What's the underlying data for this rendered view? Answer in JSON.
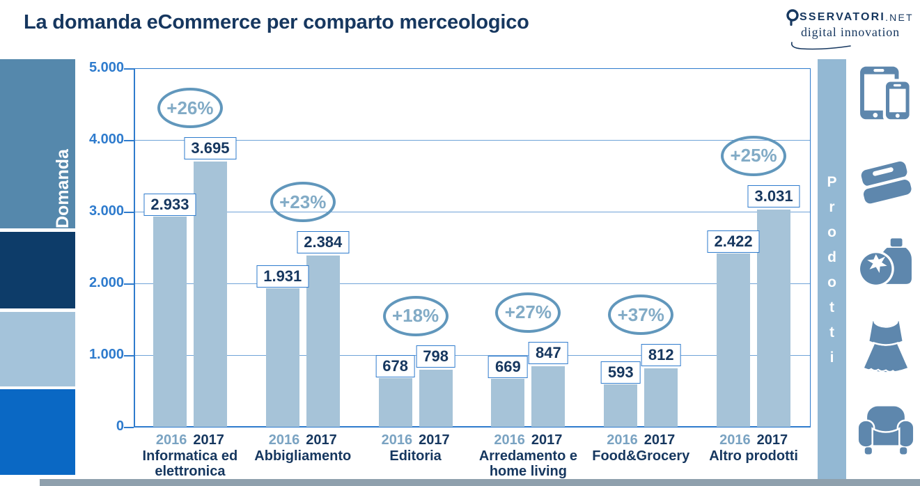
{
  "header": {
    "logo": {
      "wordmark_rest": "SSERVATORI",
      "wordmark_suffix": ".NET",
      "tagline": "digital innovation"
    }
  },
  "right_panel": {
    "label": "Prodotti",
    "icons": [
      "devices-icon",
      "books-icon",
      "food-icon",
      "dress-icon",
      "armchair-icon"
    ]
  },
  "chart_data": {
    "type": "bar",
    "title": "La domanda eCommerce per comparto merceologico",
    "ylabel": "Domanda",
    "right_label": "Prodotti",
    "ylim": [
      0,
      5000
    ],
    "grid": true,
    "yticks": [
      0,
      1000,
      2000,
      3000,
      4000,
      5000
    ],
    "ytick_labels": [
      "0",
      "1.000",
      "2.000",
      "3.000",
      "4.000",
      "5.000"
    ],
    "categories": [
      [
        "Informatica ed",
        "elettronica"
      ],
      [
        "Abbigliamento"
      ],
      [
        "Editoria"
      ],
      [
        "Arredamento e",
        "home living"
      ],
      [
        "Food&Grocery"
      ],
      [
        "Altro prodotti"
      ]
    ],
    "series": [
      {
        "name": "2016",
        "values": [
          2933,
          1931,
          678,
          669,
          593,
          2422
        ]
      },
      {
        "name": "2017",
        "values": [
          3695,
          2384,
          798,
          847,
          812,
          3031
        ]
      }
    ],
    "value_labels": {
      "2016": [
        "2.933",
        "1.931",
        "678",
        "669",
        "593",
        "2.422"
      ],
      "2017": [
        "3.695",
        "2.384",
        "798",
        "847",
        "812",
        "3.031"
      ]
    },
    "growth_labels": [
      "+26%",
      "+23%",
      "+18%",
      "+27%",
      "+37%",
      "+25%"
    ],
    "legend_position": "year labels under each bar pair"
  },
  "colors": {
    "navy": "#16375f",
    "accent_blue": "#2e7bcd",
    "grid_blue": "#6fa3d8",
    "bar_fill": "#a6c3d8",
    "steel_oval": "#6197bc",
    "oval_text": "#82abc6",
    "year_2016": "#7aa3c2",
    "sidebar_steel": "#5588ac",
    "sidebar_navy": "#0d3c69",
    "sidebar_light": "#a4c3da",
    "sidebar_bright": "#0a68c4",
    "right_bar": "#93b8d3",
    "icon": "#5e87ad",
    "footer_gray": "#8fa0ad"
  }
}
